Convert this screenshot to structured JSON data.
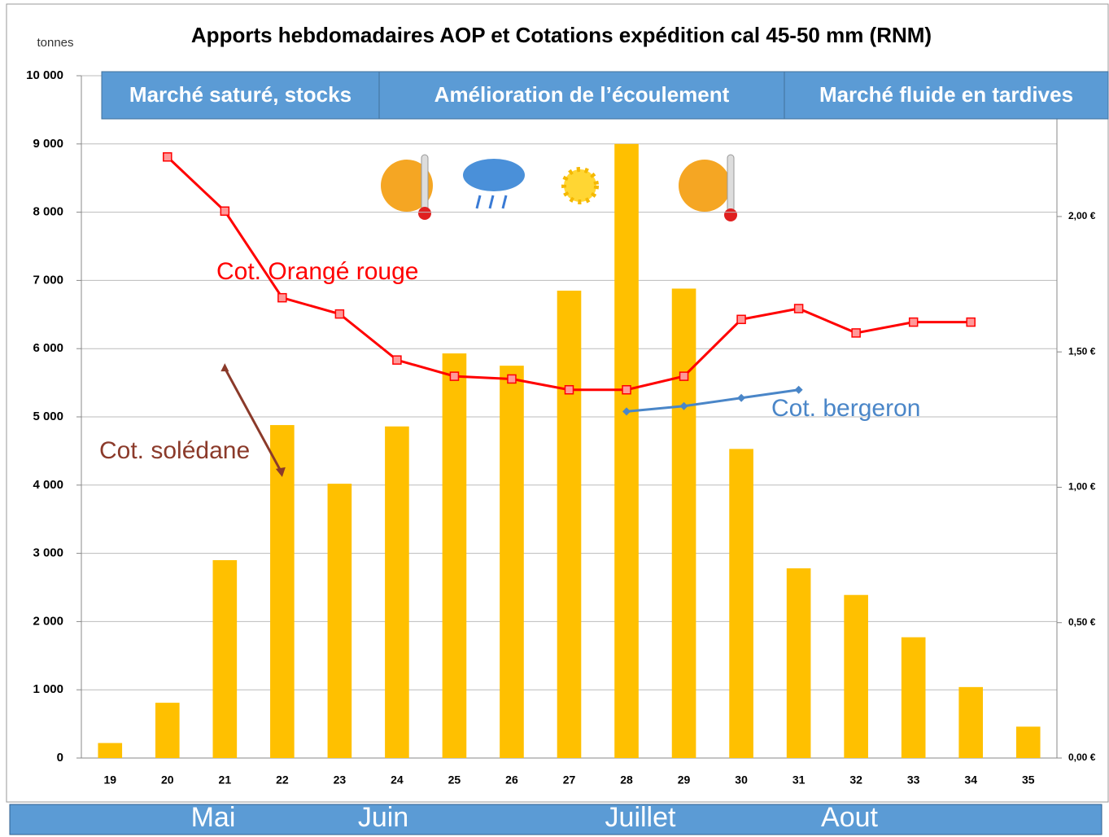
{
  "chart_data": {
    "type": "bar",
    "title": "Apports hebdomadaires AOP et Cotations expédition cal 45-50 mm (RNM)",
    "ylabel": "tonnes",
    "categories": [
      "19",
      "20",
      "21",
      "22",
      "23",
      "24",
      "25",
      "26",
      "27",
      "28",
      "29",
      "30",
      "31",
      "32",
      "33",
      "34",
      "35"
    ],
    "values": [
      220,
      810,
      2900,
      4880,
      4020,
      4860,
      5930,
      5750,
      6850,
      9000,
      6880,
      4530,
      2780,
      2390,
      1770,
      1040,
      460
    ],
    "color": "#ffc000",
    "ylim": [
      0,
      10000
    ],
    "yticks": [
      0,
      {
        "value": 1000,
        "label": "1 000"
      },
      {
        "value": 2000,
        "label": "2 000"
      },
      {
        "value": 3000,
        "label": "3 000"
      },
      {
        "value": 4000,
        "label": "4 000"
      },
      {
        "value": 5000,
        "label": "5 000"
      },
      {
        "value": 6000,
        "label": "6 000"
      },
      {
        "value": 7000,
        "label": "7 000"
      },
      {
        "value": 8000,
        "label": "8 000"
      },
      {
        "value": 9000,
        "label": "9 000"
      },
      {
        "value": 10000,
        "label": "10 000"
      }
    ],
    "y2lim": [
      0,
      2.52
    ],
    "y2ticks": [
      {
        "value": 0,
        "label": "0,00 €"
      },
      {
        "value": 0.5,
        "label": "0,50 €"
      },
      {
        "value": 1,
        "label": "1,00 €"
      },
      {
        "value": 1.5,
        "label": "1,50 €"
      },
      {
        "value": 2,
        "label": "2,00 €"
      }
    ],
    "grid": true,
    "series": [
      {
        "name": "Cot. Orangé rouge",
        "color": "#ff0000",
        "axis": "y2",
        "values": [
          null,
          2.22,
          2.02,
          1.7,
          1.64,
          1.47,
          1.41,
          1.4,
          1.36,
          1.36,
          1.41,
          1.62,
          1.66,
          1.57,
          1.61,
          1.61,
          null
        ]
      },
      {
        "name": "Cot. bergeron",
        "color": "#4a86c8",
        "axis": "y2",
        "values": [
          null,
          null,
          null,
          null,
          null,
          null,
          null,
          null,
          null,
          1.28,
          1.3,
          1.33,
          1.36,
          null,
          null,
          null,
          null
        ]
      },
      {
        "name": "Cot. solédane",
        "color": "#8b3a2a",
        "axis": "y2",
        "values": [
          null,
          null,
          1.44,
          1.05,
          null,
          null,
          null,
          null,
          null,
          null,
          null,
          null,
          null,
          null,
          null,
          null,
          null
        ]
      }
    ],
    "phases": [
      "Marché  saturé, stocks",
      "Amélioration de l’écoulement",
      "Marché fluide en tardives"
    ],
    "months": [
      "Mai",
      "Juin",
      "Juillet",
      "Aout"
    ]
  }
}
